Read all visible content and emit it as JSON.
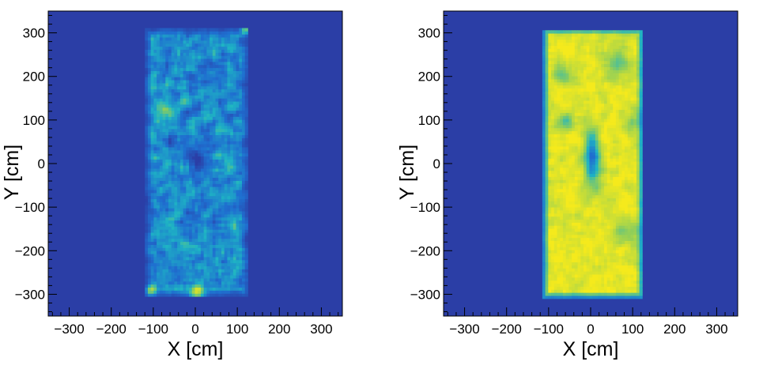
{
  "chart_data": [
    {
      "type": "heatmap",
      "panel": "left",
      "xlabel": "X [cm]",
      "ylabel": "Y [cm]",
      "xlim": [
        -350,
        350
      ],
      "ylim": [
        -350,
        350
      ],
      "xticks": [
        -300,
        -200,
        -100,
        0,
        100,
        200,
        300
      ],
      "yticks": [
        -300,
        -200,
        -100,
        0,
        100,
        200,
        300
      ],
      "xtick_labels": [
        "−300",
        "−200",
        "−100",
        "0",
        "100",
        "200",
        "300"
      ],
      "ytick_labels": [
        "−300",
        "−200",
        "−100",
        "0",
        "100",
        "200",
        "300"
      ],
      "filled_region": {
        "x": [
          -120,
          120
        ],
        "y": [
          -305,
          305
        ]
      },
      "background_color": "#2b3ea6",
      "colors": [
        "#2b3ea6",
        "#1f6fd0",
        "#1eb4c4",
        "#8fce5a",
        "#f5ea1c"
      ],
      "intensity_level": 0.35,
      "noise": 0.45,
      "features": [
        {
          "x": -110,
          "y": -295,
          "strength": 0.55,
          "r": 12
        },
        {
          "x": 0,
          "y": -300,
          "strength": 0.6,
          "r": 18
        },
        {
          "x": 115,
          "y": 305,
          "strength": 0.5,
          "r": 10
        },
        {
          "x": -70,
          "y": 120,
          "strength": 0.35,
          "r": 20
        },
        {
          "x": -5,
          "y": 10,
          "strength": -0.25,
          "r": 30
        }
      ],
      "grid": false
    },
    {
      "type": "heatmap",
      "panel": "right",
      "xlabel": "X [cm]",
      "ylabel": "Y [cm]",
      "xlim": [
        -350,
        350
      ],
      "ylim": [
        -350,
        350
      ],
      "xticks": [
        -300,
        -200,
        -100,
        0,
        100,
        200,
        300
      ],
      "yticks": [
        -300,
        -200,
        -100,
        0,
        100,
        200,
        300
      ],
      "xtick_labels": [
        "−300",
        "−200",
        "−100",
        "0",
        "100",
        "200",
        "300"
      ],
      "ytick_labels": [
        "−300",
        "−200",
        "−100",
        "0",
        "100",
        "200",
        "300"
      ],
      "filled_region": {
        "x": [
          -115,
          120
        ],
        "y": [
          -310,
          305
        ]
      },
      "background_color": "#2b3ea6",
      "colors": [
        "#2b3ea6",
        "#1f6fd0",
        "#1eb4c4",
        "#8fce5a",
        "#f5ea1c"
      ],
      "intensity_level": 0.95,
      "noise": 0.2,
      "features": [
        {
          "x": 0,
          "y": 10,
          "strength": -0.7,
          "r": 18,
          "stretch_y": 3.5
        },
        {
          "x": -60,
          "y": 95,
          "strength": -0.35,
          "r": 18
        },
        {
          "x": 60,
          "y": 230,
          "strength": -0.3,
          "r": 30
        },
        {
          "x": -70,
          "y": 200,
          "strength": -0.25,
          "r": 25
        },
        {
          "x": 80,
          "y": -160,
          "strength": -0.25,
          "r": 30
        },
        {
          "x": 100,
          "y": 90,
          "strength": -0.2,
          "r": 22
        }
      ],
      "grid": false
    }
  ]
}
